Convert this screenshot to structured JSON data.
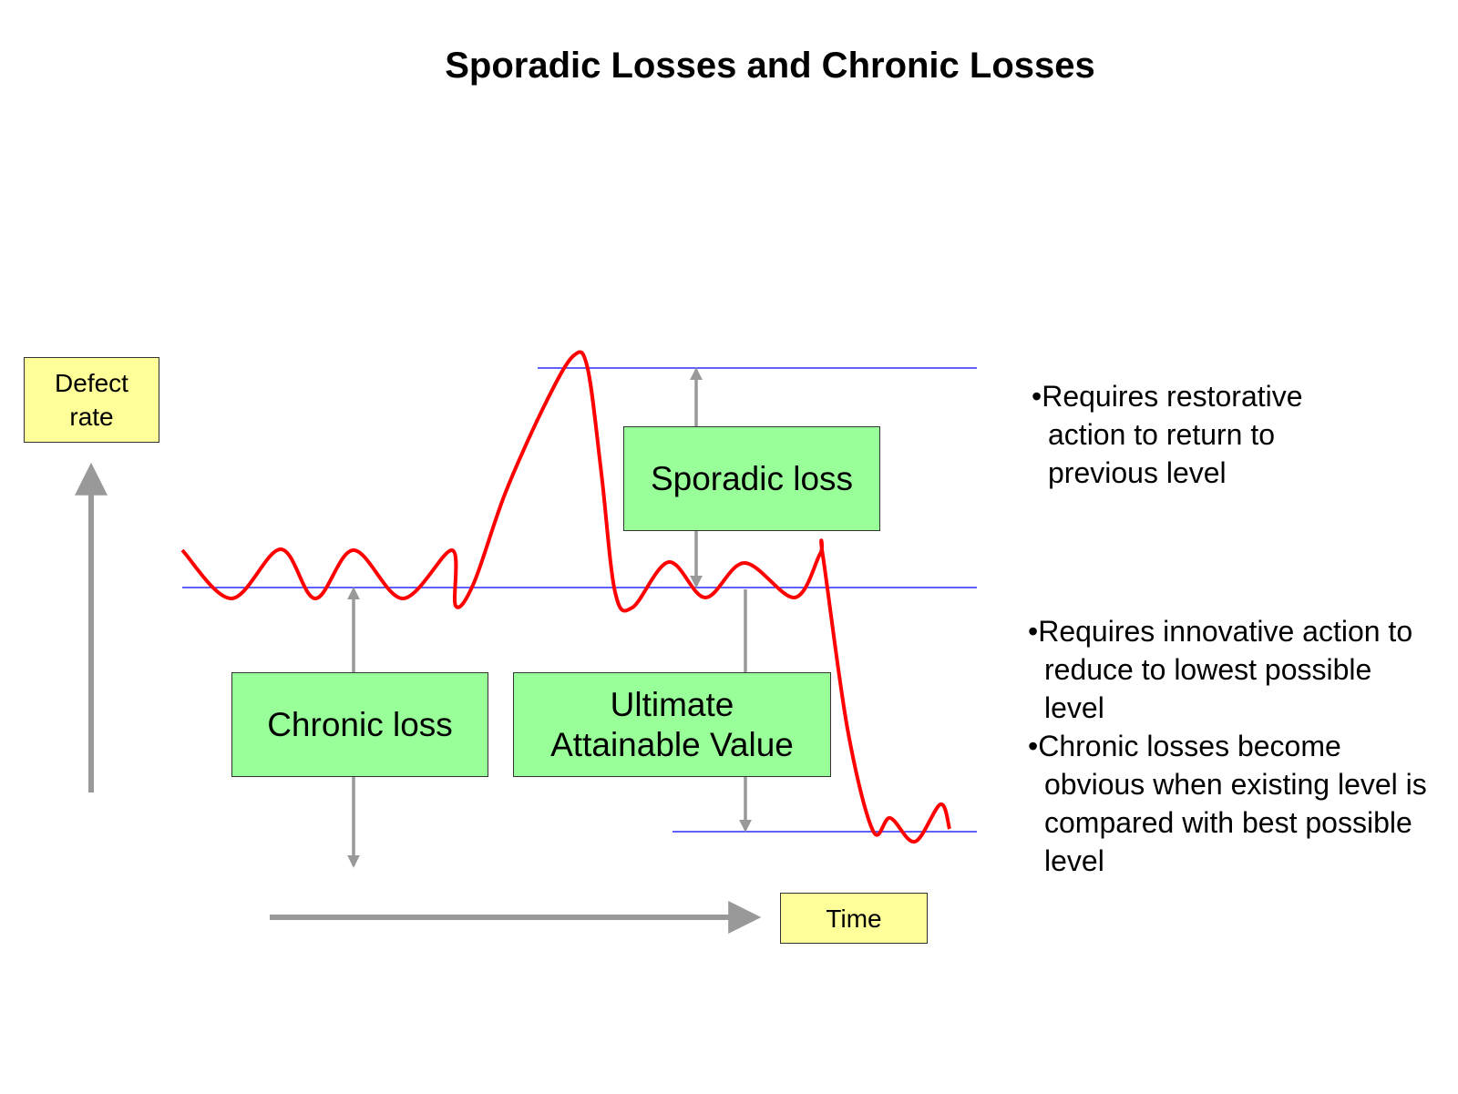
{
  "title": "Sporadic Losses and Chronic Losses",
  "labels": {
    "y_axis": "Defect rate",
    "x_axis": "Time",
    "sporadic": "Sporadic loss",
    "chronic": "Chronic loss",
    "ultimate": "Ultimate Attainable Value"
  },
  "notes_top": [
    "•Requires restorative action to return to previous level"
  ],
  "notes_bottom": [
    "•Requires innovative action to reduce to lowest possible level",
    "•Chronic losses become obvious when existing level is compared with best possible level"
  ],
  "colors": {
    "curve": "#ff0000",
    "level_line": "#0000ff",
    "arrow": "#999999",
    "label_box": "#ffff99",
    "loss_box": "#99ff99"
  }
}
